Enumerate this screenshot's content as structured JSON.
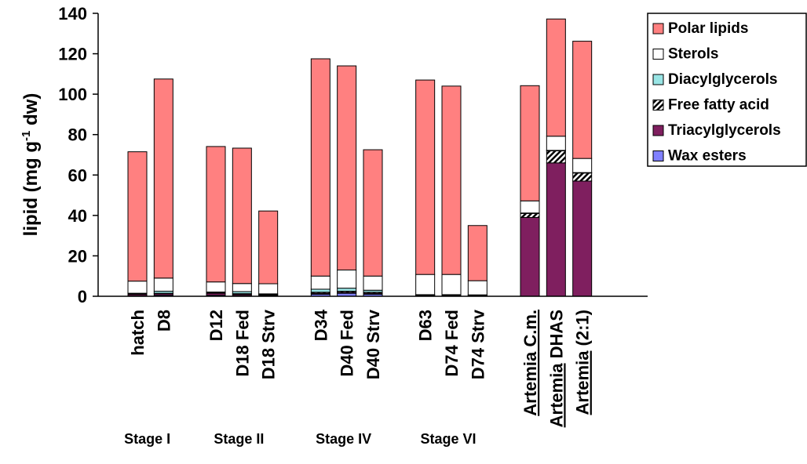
{
  "chart_data": {
    "type": "bar",
    "stacked": true,
    "ylabel_main": "lipid (mg g",
    "ylabel_sup": "-1",
    "ylabel_end": " dw)",
    "ylim": [
      0,
      140
    ],
    "yticks": [
      0,
      20,
      40,
      60,
      80,
      100,
      120,
      140
    ],
    "grid": false,
    "legend_position": "top-right",
    "categories": [
      "hatch",
      "D8",
      "D12",
      "D18 Fed",
      "D18 Strv",
      "D34",
      "D40 Fed",
      "D40 Strv",
      "D63",
      "D74 Fed",
      "D74 Strv",
      "C.m.",
      "DHAS",
      "(2:1)"
    ],
    "category_prefix": [
      "",
      "",
      "",
      "",
      "",
      "",
      "",
      "",
      "",
      "",
      "",
      "Artemia",
      "Artemia",
      "Artemia"
    ],
    "groups": [
      {
        "label": "Stage I",
        "size": 2
      },
      {
        "label": "Stage II",
        "size": 3
      },
      {
        "label": "Stage IV",
        "size": 3
      },
      {
        "label": "Stage VI",
        "size": 3
      },
      {
        "label": "",
        "size": 3
      }
    ],
    "series": [
      {
        "name": "Wax esters",
        "color": "#8080ff",
        "values": [
          0.3,
          0.5,
          0.5,
          0.4,
          0.3,
          1.0,
          1.5,
          1.0,
          0,
          0,
          0,
          0,
          0,
          0
        ]
      },
      {
        "name": "Triacylglycerols",
        "color": "#7f1f5f",
        "values": [
          0.7,
          0.8,
          1.0,
          0.6,
          0.4,
          0.5,
          0.5,
          0.5,
          0.4,
          0.4,
          0.3,
          39.0,
          66.0,
          57.0
        ]
      },
      {
        "name": "Free fatty acid",
        "color": "hatch",
        "values": [
          0.2,
          0.2,
          0.3,
          0.3,
          0.2,
          0.5,
          0.5,
          0.5,
          0.2,
          0.2,
          0.2,
          2.0,
          6.0,
          4.0
        ]
      },
      {
        "name": "Diacylglycerols",
        "color": "#99e5e5",
        "values": [
          0.3,
          1.0,
          0.3,
          1.0,
          0.3,
          1.5,
          1.5,
          1.0,
          0.2,
          0.2,
          0.2,
          0.2,
          0.2,
          0.2
        ]
      },
      {
        "name": "Sterols",
        "color": "#ffffff",
        "values": [
          6.0,
          6.5,
          5.0,
          4.0,
          5.0,
          6.5,
          9.0,
          7.0,
          10.0,
          10.0,
          7.0,
          6.0,
          7.0,
          7.0
        ]
      },
      {
        "name": "Polar lipids",
        "color": "#ff8080",
        "values": [
          64.0,
          98.5,
          67.0,
          67.0,
          36.0,
          107.5,
          101.0,
          62.5,
          96.2,
          93.2,
          27.3,
          57.0,
          58.0,
          58.0
        ]
      }
    ],
    "legend_order": [
      "Polar lipids",
      "Sterols",
      "Diacylglycerols",
      "Free fatty acid",
      "Triacylglycerols",
      "Wax esters"
    ]
  }
}
